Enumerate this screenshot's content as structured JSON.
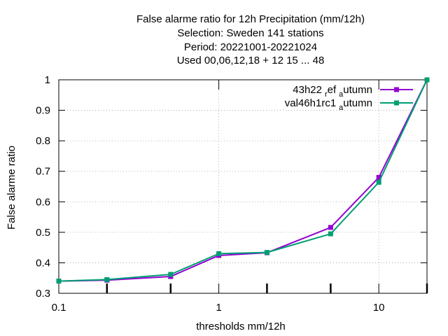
{
  "chart_data": {
    "type": "line",
    "title": [
      "False alarme ratio  for 12h Precipitation (mm/12h)",
      "Selection: Sweden    141 stations",
      "Period: 20221001-20221024",
      "Used  00,06,12,18  + 12 15 ... 48"
    ],
    "xlabel": "thresholds mm/12h",
    "ylabel": "False alarme ratio",
    "xscale": "log",
    "xlim": [
      0.1,
      20
    ],
    "ylim": [
      0.3,
      1.0
    ],
    "xticks": [
      0.1,
      1,
      10
    ],
    "xtick_labels": [
      "0.1",
      "1",
      "10"
    ],
    "xminor_ticks": [
      0.2,
      0.5,
      2,
      5,
      20
    ],
    "yticks": [
      0.3,
      0.4,
      0.5,
      0.6,
      0.7,
      0.8,
      0.9,
      1.0
    ],
    "ytick_labels": [
      "0.3",
      "0.4",
      "0.5",
      "0.6",
      "0.7",
      "0.8",
      "0.9",
      "1"
    ],
    "grid": true,
    "legend_position": "top-right",
    "x": [
      0.1,
      0.2,
      0.5,
      1,
      2,
      5,
      10,
      20
    ],
    "series": [
      {
        "name_main": "43h22",
        "name_sub1": "r",
        "name_mid": "ef",
        "name_sub2": "a",
        "name_end": "utumn",
        "color": "#9400d3",
        "values": [
          0.34,
          0.343,
          0.355,
          0.424,
          0.433,
          0.516,
          0.68,
          1.0
        ]
      },
      {
        "name_main": "val46h1rc1",
        "name_sub1": "",
        "name_mid": "",
        "name_sub2": "a",
        "name_end": "utumn",
        "color": "#009e73",
        "values": [
          0.34,
          0.345,
          0.362,
          0.43,
          0.434,
          0.495,
          0.664,
          1.0
        ]
      }
    ]
  }
}
